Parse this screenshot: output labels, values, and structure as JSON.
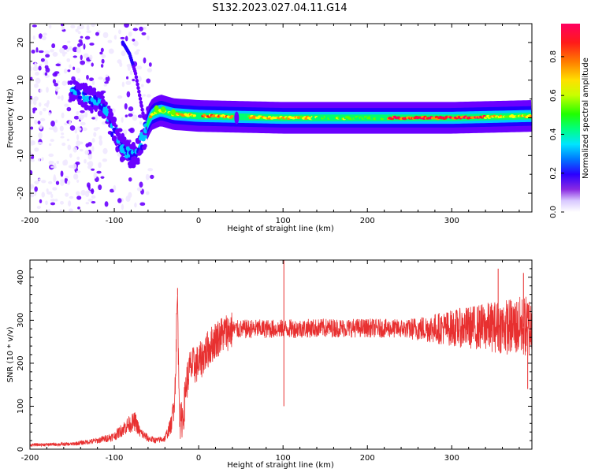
{
  "title": "S132.2023.027.04.11.G14",
  "colors": {
    "snr_line": "#e83030",
    "frame": "#000000"
  },
  "colorbar": {
    "label": "Normalized spectral amplitude",
    "ticks": [
      "0.0",
      "0.2",
      "0.4",
      "0.6",
      "0.8"
    ],
    "tick_values": [
      0.0,
      0.2,
      0.4,
      0.6,
      0.8
    ],
    "range": [
      0,
      0.97
    ],
    "colormap": "gist_rainbow_reversed"
  },
  "chart_data": [
    {
      "type": "heatmap",
      "name": "spectrogram",
      "title": "",
      "xlabel": "Height of straight line (km)",
      "ylabel": "Frequency (Hz)",
      "xlim": [
        -200,
        395
      ],
      "ylim": [
        -25,
        25
      ],
      "xticks": [
        -200,
        -100,
        0,
        100,
        200,
        300
      ],
      "xtick_labels": [
        "-200",
        "-100",
        "0",
        "100",
        "200",
        "300"
      ],
      "yticks": [
        -20,
        -10,
        0,
        10,
        20
      ],
      "ytick_labels": [
        "-20",
        "-10",
        "0",
        "10",
        "20"
      ],
      "ridge": [
        {
          "x": -150,
          "y": 8
        },
        {
          "x": -130,
          "y": 5
        },
        {
          "x": -115,
          "y": 4
        },
        {
          "x": -110,
          "y": 2
        },
        {
          "x": -105,
          "y": -1
        },
        {
          "x": -100,
          "y": -4
        },
        {
          "x": -90,
          "y": -8
        },
        {
          "x": -80,
          "y": -10
        },
        {
          "x": -72,
          "y": -9
        },
        {
          "x": -65,
          "y": -5
        },
        {
          "x": -60,
          "y": -1
        },
        {
          "x": -55,
          "y": 1
        },
        {
          "x": -45,
          "y": 2
        },
        {
          "x": -30,
          "y": 1
        },
        {
          "x": 0,
          "y": 0.5
        },
        {
          "x": 100,
          "y": 0
        },
        {
          "x": 200,
          "y": 0
        },
        {
          "x": 300,
          "y": 0
        },
        {
          "x": 395,
          "y": 0.5
        }
      ],
      "upper_branch": [
        {
          "x": -90,
          "y": 20
        },
        {
          "x": -82,
          "y": 17
        },
        {
          "x": -75,
          "y": 12
        },
        {
          "x": -70,
          "y": 6
        },
        {
          "x": -65,
          "y": 0
        }
      ]
    },
    {
      "type": "line",
      "name": "snr",
      "title": "",
      "xlabel": "Height of straight line (km)",
      "ylabel": "SNR (10 * v/v)",
      "xlim": [
        -200,
        395
      ],
      "ylim": [
        0,
        440
      ],
      "xticks": [
        -200,
        -100,
        0,
        100,
        200,
        300
      ],
      "xtick_labels": [
        "-200",
        "-100",
        "0",
        "100",
        "200",
        "300"
      ],
      "yticks": [
        0,
        100,
        200,
        300,
        400
      ],
      "ytick_labels": [
        "0",
        "100",
        "200",
        "300",
        "400"
      ],
      "envelope": [
        {
          "x": -200,
          "y": 10
        },
        {
          "x": -150,
          "y": 12
        },
        {
          "x": -120,
          "y": 20
        },
        {
          "x": -100,
          "y": 30
        },
        {
          "x": -85,
          "y": 55
        },
        {
          "x": -75,
          "y": 65
        },
        {
          "x": -70,
          "y": 40
        },
        {
          "x": -60,
          "y": 25
        },
        {
          "x": -50,
          "y": 20
        },
        {
          "x": -40,
          "y": 25
        },
        {
          "x": -32,
          "y": 60
        },
        {
          "x": -28,
          "y": 140
        },
        {
          "x": -26,
          "y": 300
        },
        {
          "x": -25,
          "y": 360
        },
        {
          "x": -24,
          "y": 200
        },
        {
          "x": -22,
          "y": 60
        },
        {
          "x": -18,
          "y": 80
        },
        {
          "x": -15,
          "y": 150
        },
        {
          "x": -10,
          "y": 190
        },
        {
          "x": 0,
          "y": 200
        },
        {
          "x": 10,
          "y": 230
        },
        {
          "x": 20,
          "y": 255
        },
        {
          "x": 30,
          "y": 270
        },
        {
          "x": 40,
          "y": 278
        },
        {
          "x": 60,
          "y": 280
        },
        {
          "x": 100,
          "y": 280
        },
        {
          "x": 150,
          "y": 282
        },
        {
          "x": 200,
          "y": 282
        },
        {
          "x": 250,
          "y": 280
        },
        {
          "x": 300,
          "y": 282
        },
        {
          "x": 350,
          "y": 285
        },
        {
          "x": 395,
          "y": 285
        }
      ],
      "spikes": [
        {
          "x": -25,
          "y": 375
        },
        {
          "x": 101,
          "y": 440
        },
        {
          "x": 101,
          "y": 100
        },
        {
          "x": 355,
          "y": 420
        },
        {
          "x": 385,
          "y": 410
        },
        {
          "x": 390,
          "y": 140
        }
      ]
    }
  ]
}
